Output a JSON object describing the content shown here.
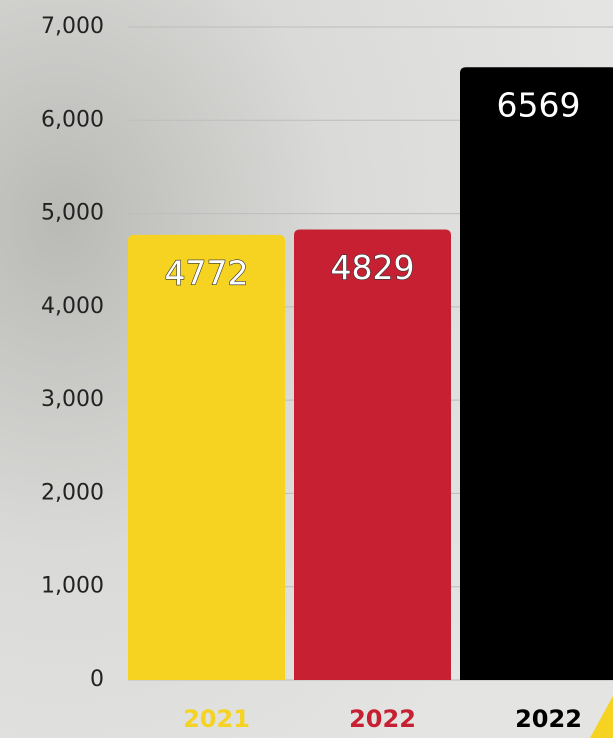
{
  "chart_data": {
    "type": "bar",
    "categories": [
      "2021",
      "2022",
      "2022"
    ],
    "values": [
      4772,
      4829,
      6569
    ],
    "colors": [
      "#f5d320",
      "#c82033",
      "#000000"
    ],
    "ylim": [
      0,
      7000
    ],
    "yticks": [
      0,
      {
        "value": 1000,
        "label": "1,000"
      },
      {
        "value": 2000,
        "label": "2,000"
      },
      {
        "value": 3000,
        "label": "3,000"
      },
      {
        "value": 4000,
        "label": "4,000"
      },
      {
        "value": 5000,
        "label": "5,000"
      },
      {
        "value": 6000,
        "label": "6,000"
      },
      {
        "value": 7000,
        "label": "7,000"
      }
    ],
    "grid": true
  }
}
